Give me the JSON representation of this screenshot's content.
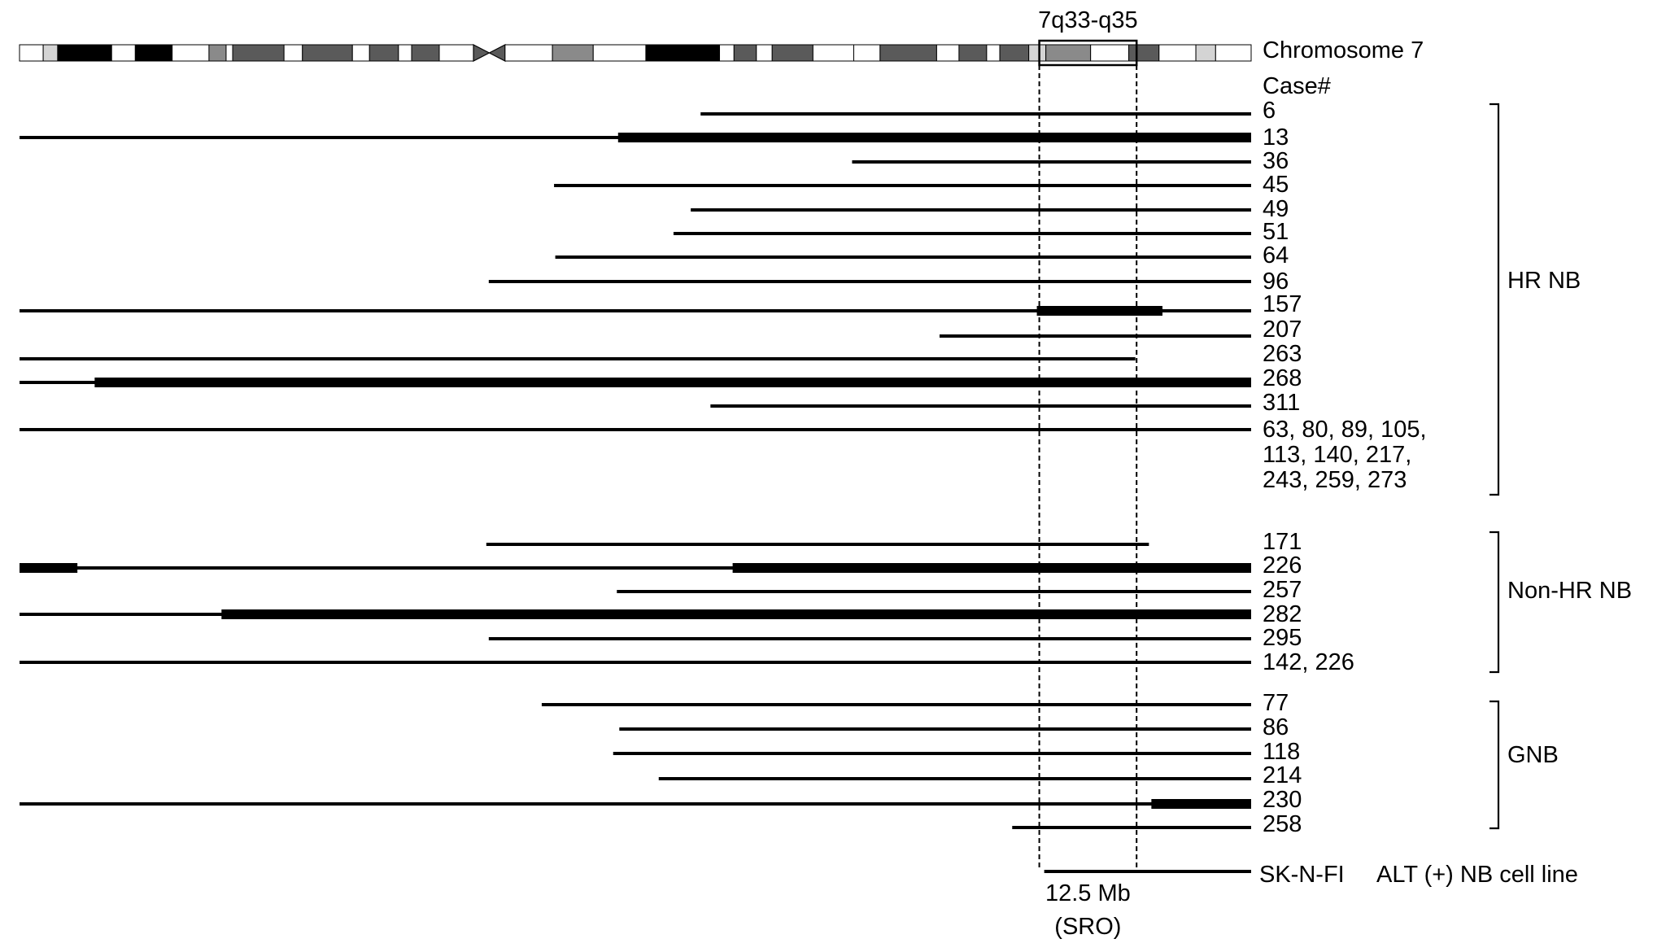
{
  "region_label": "7q33-q35",
  "chromosome_label": "Chromosome 7",
  "case_header": "Case#",
  "sro_size": "12.5 Mb",
  "sro_label": "(SRO)",
  "groups": [
    {
      "label": "HR NB"
    },
    {
      "label": "Non-HR NB"
    },
    {
      "label": "GNB"
    }
  ],
  "cases": [
    {
      "label": "6",
      "start": 0.553,
      "end": 1.0,
      "thick": []
    },
    {
      "label": "13",
      "start": 0.0,
      "end": 1.0,
      "thick": [
        [
          0.486,
          1.0
        ]
      ]
    },
    {
      "label": "36",
      "start": 0.676,
      "end": 1.0,
      "thick": []
    },
    {
      "label": "45",
      "start": 0.434,
      "end": 1.0,
      "thick": []
    },
    {
      "label": "49",
      "start": 0.545,
      "end": 1.0,
      "thick": []
    },
    {
      "label": "51",
      "start": 0.531,
      "end": 1.0,
      "thick": []
    },
    {
      "label": "64",
      "start": 0.435,
      "end": 1.0,
      "thick": []
    },
    {
      "label": "96",
      "start": 0.381,
      "end": 1.0,
      "thick": []
    },
    {
      "label": "157",
      "start": 0.0,
      "end": 1.0,
      "thick": [
        [
          0.826,
          0.928
        ]
      ]
    },
    {
      "label": "207",
      "start": 0.747,
      "end": 1.0,
      "thick": []
    },
    {
      "label": "263",
      "start": 0.0,
      "end": 0.906,
      "thick": []
    },
    {
      "label": "268",
      "start": 0.0,
      "end": 1.0,
      "thick": [
        [
          0.061,
          1.0
        ]
      ]
    },
    {
      "label": "311",
      "start": 0.561,
      "end": 1.0,
      "thick": []
    },
    {
      "label": "63, 80, 89, 105,",
      "label2": "113, 140, 217,",
      "label3": "243, 259, 273",
      "start": 0.0,
      "end": 1.0,
      "thick": []
    },
    {
      "label": "171",
      "start": 0.379,
      "end": 0.917,
      "thick": []
    },
    {
      "label": "226",
      "start": 0.0,
      "end": 1.0,
      "thick": [
        [
          0.0,
          0.047
        ],
        [
          0.579,
          1.0
        ]
      ]
    },
    {
      "label": "257",
      "start": 0.485,
      "end": 1.0,
      "thick": []
    },
    {
      "label": "282",
      "start": 0.0,
      "end": 1.0,
      "thick": [
        [
          0.164,
          1.0
        ]
      ]
    },
    {
      "label": "295",
      "start": 0.381,
      "end": 1.0,
      "thick": []
    },
    {
      "label": "142, 226",
      "start": 0.0,
      "end": 1.0,
      "thick": []
    },
    {
      "label": "77",
      "start": 0.424,
      "end": 1.0,
      "thick": []
    },
    {
      "label": "86",
      "start": 0.487,
      "end": 1.0,
      "thick": []
    },
    {
      "label": "118",
      "start": 0.482,
      "end": 1.0,
      "thick": []
    },
    {
      "label": "214",
      "start": 0.519,
      "end": 1.0,
      "thick": []
    },
    {
      "label": "230",
      "start": 0.0,
      "end": 1.0,
      "thick": [
        [
          0.919,
          1.0
        ]
      ]
    },
    {
      "label": "258",
      "start": 0.806,
      "end": 1.0,
      "thick": []
    }
  ],
  "cell_line": {
    "name": "SK-N-FI",
    "description": "ALT (+) NB cell line",
    "start": 0.832,
    "end": 1.0
  },
  "sro": {
    "start": 0.828,
    "end": 0.907
  },
  "bands": {
    "colors": [
      "#ffffff",
      "#d4d4d4",
      "#000000",
      "#ffffff",
      "#000000",
      "#ffffff",
      "#8a8a8a",
      "#ffffff",
      "#5a5a5a",
      "#ffffff",
      "#5a5a5a",
      "#ffffff",
      "#5a5a5a",
      "#ffffff",
      "#5a5a5a",
      "#ffffff",
      "centromere",
      "#ffffff",
      "#8a8a8a",
      "#ffffff",
      "#000000",
      "#ffffff",
      "#5a5a5a",
      "#ffffff",
      "#5a5a5a",
      "#ffffff",
      "#ffffff",
      "#5a5a5a",
      "#ffffff",
      "#5a5a5a",
      "#ffffff",
      "#5a5a5a",
      "#d4d4d4",
      "#8a8a8a",
      "#ffffff",
      "#5a5a5a",
      "#ffffff",
      "#d4d4d4",
      "#ffffff"
    ],
    "widths": [
      0.018,
      0.011,
      0.041,
      0.018,
      0.028,
      0.028,
      0.013,
      0.005,
      0.039,
      0.014,
      0.038,
      0.013,
      0.022,
      0.01,
      0.021,
      0.026,
      0.024,
      0.036,
      0.031,
      0.04,
      0.056,
      0.011,
      0.017,
      0.012,
      0.031,
      0.031,
      0.02,
      0.043,
      0.017,
      0.021,
      0.01,
      0.022,
      0.013,
      0.034,
      0.029,
      0.023,
      0.028,
      0.015,
      0.027
    ]
  }
}
